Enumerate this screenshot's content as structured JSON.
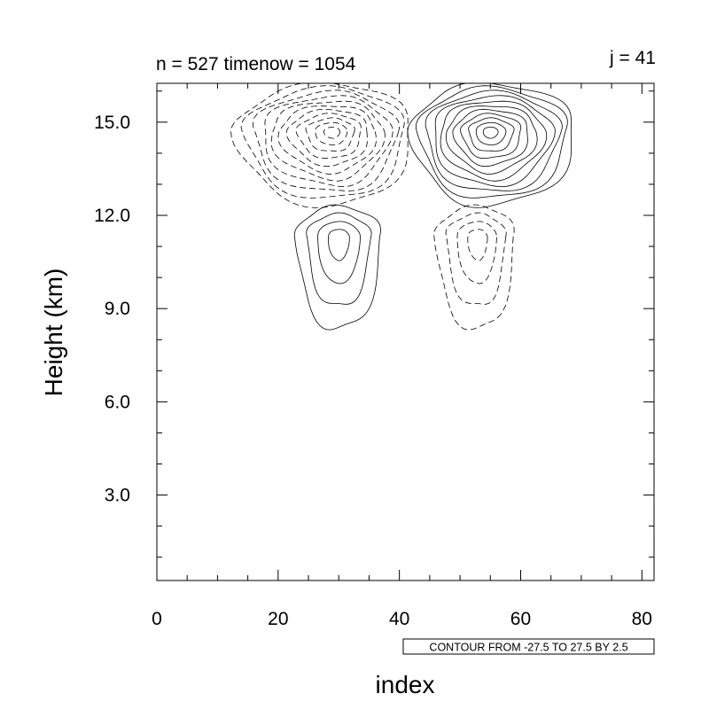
{
  "chart_data": {
    "type": "contour",
    "left_title": "n = 527 timenow = 1054",
    "right_title": "j = 41",
    "xlabel": "index",
    "ylabel": "Height (km)",
    "xlim": [
      0,
      82
    ],
    "ylim": [
      0.25,
      16.25
    ],
    "x_ticks": [
      0,
      20,
      40,
      60,
      80
    ],
    "x_tick_labels": [
      "0",
      "20",
      "40",
      "60",
      "80"
    ],
    "y_ticks": [
      3,
      6,
      9,
      12,
      15
    ],
    "y_tick_labels": [
      "3.0",
      "6.0",
      "9.0",
      "12.0",
      "15.0"
    ],
    "info_label": "CONTOUR FROM -27.5 TO 27.5 BY 2.5",
    "contour_levels": {
      "min": -27.5,
      "max": 27.5,
      "step": 2.5
    },
    "negative_contours_dashed": true,
    "features": [
      {
        "sign": "positive",
        "center": [
          30,
          11.3
        ],
        "extent_x": [
          23,
          37
        ],
        "extent_y": [
          8.3,
          12.3
        ],
        "rings": 4
      },
      {
        "sign": "negative",
        "center": [
          53,
          11.3
        ],
        "extent_x": [
          46,
          59
        ],
        "extent_y": [
          8.3,
          12.3
        ],
        "rings": 4
      },
      {
        "sign": "positive",
        "center": [
          55,
          14.7
        ],
        "extent_x": [
          42,
          69
        ],
        "extent_y": [
          12.3,
          16.25
        ],
        "rings": 11
      },
      {
        "sign": "negative",
        "center": [
          29,
          14.7
        ],
        "extent_x": [
          13,
          42
        ],
        "extent_y": [
          12.3,
          16.25
        ],
        "rings": 11
      }
    ]
  }
}
